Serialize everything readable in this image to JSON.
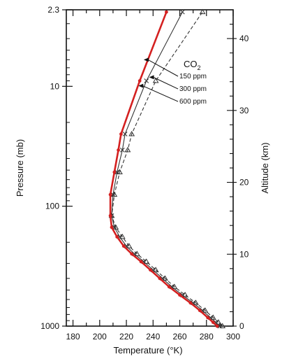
{
  "chart_data": {
    "type": "line",
    "xlabel": "Temperature (°K)",
    "ylabel_left": "Pressure (mb)",
    "ylabel_right": "Altitude (km)",
    "xlim": [
      175,
      300
    ],
    "pressure_range_mb": [
      2.3,
      1000
    ],
    "pressure_scale": "log",
    "altitude_range_km": [
      0,
      44
    ],
    "x_ticks": [
      180,
      200,
      220,
      240,
      260,
      280,
      300
    ],
    "x_tick_labels": [
      "180",
      "200",
      "220",
      "240",
      "260",
      "280",
      "300"
    ],
    "left_ticks": [
      2.3,
      10,
      100,
      1000
    ],
    "left_tick_labels": [
      "2.3",
      "10",
      "100",
      "1000"
    ],
    "right_ticks": [
      0,
      10,
      20,
      30,
      40
    ],
    "right_tick_labels": [
      "0",
      "10",
      "20",
      "30",
      "40"
    ],
    "legend_title": "CO2",
    "series": [
      {
        "name": "150 ppm",
        "color": "#333333",
        "style": "dashed",
        "marker": "triangle",
        "points": [
          {
            "t": 292,
            "p": 1000
          },
          {
            "t": 289,
            "p": 930
          },
          {
            "t": 285,
            "p": 850
          },
          {
            "t": 279,
            "p": 740
          },
          {
            "t": 272,
            "p": 640
          },
          {
            "t": 264,
            "p": 550
          },
          {
            "t": 256,
            "p": 470
          },
          {
            "t": 249,
            "p": 400
          },
          {
            "t": 242,
            "p": 340
          },
          {
            "t": 235,
            "p": 290
          },
          {
            "t": 228,
            "p": 250
          },
          {
            "t": 222,
            "p": 215
          },
          {
            "t": 217,
            "p": 180
          },
          {
            "t": 212,
            "p": 150
          },
          {
            "t": 209,
            "p": 120
          },
          {
            "t": 211,
            "p": 80
          },
          {
            "t": 215,
            "p": 52
          },
          {
            "t": 221,
            "p": 34
          },
          {
            "t": 224,
            "p": 25
          },
          {
            "t": 242,
            "p": 9
          },
          {
            "t": 277,
            "p": 2.4
          }
        ]
      },
      {
        "name": "300 ppm",
        "color": "#333333",
        "style": "solid",
        "marker": "x",
        "points": [
          {
            "t": 290,
            "p": 1000
          },
          {
            "t": 287,
            "p": 930
          },
          {
            "t": 283,
            "p": 850
          },
          {
            "t": 277,
            "p": 740
          },
          {
            "t": 270,
            "p": 640
          },
          {
            "t": 262,
            "p": 550
          },
          {
            "t": 254,
            "p": 470
          },
          {
            "t": 247,
            "p": 400
          },
          {
            "t": 240,
            "p": 340
          },
          {
            "t": 233,
            "p": 290
          },
          {
            "t": 226,
            "p": 250
          },
          {
            "t": 220,
            "p": 215
          },
          {
            "t": 215,
            "p": 180
          },
          {
            "t": 211,
            "p": 150
          },
          {
            "t": 209,
            "p": 120
          },
          {
            "t": 210,
            "p": 80
          },
          {
            "t": 213,
            "p": 52
          },
          {
            "t": 217,
            "p": 34
          },
          {
            "t": 219,
            "p": 25
          },
          {
            "t": 235,
            "p": 9
          },
          {
            "t": 262,
            "p": 2.4
          }
        ]
      },
      {
        "name": "600 ppm",
        "color": "#d42020",
        "style": "solid",
        "marker": "dot",
        "points": [
          {
            "t": 288,
            "p": 1000
          },
          {
            "t": 285,
            "p": 930
          },
          {
            "t": 281,
            "p": 850
          },
          {
            "t": 275,
            "p": 740
          },
          {
            "t": 268,
            "p": 640
          },
          {
            "t": 260,
            "p": 550
          },
          {
            "t": 252,
            "p": 470
          },
          {
            "t": 245,
            "p": 400
          },
          {
            "t": 238,
            "p": 340
          },
          {
            "t": 231,
            "p": 290
          },
          {
            "t": 224,
            "p": 250
          },
          {
            "t": 218,
            "p": 215
          },
          {
            "t": 213,
            "p": 180
          },
          {
            "t": 209,
            "p": 150
          },
          {
            "t": 208,
            "p": 120
          },
          {
            "t": 208,
            "p": 80
          },
          {
            "t": 211,
            "p": 52
          },
          {
            "t": 214,
            "p": 34
          },
          {
            "t": 216,
            "p": 25
          },
          {
            "t": 230,
            "p": 9
          },
          {
            "t": 250,
            "p": 2.4
          }
        ]
      }
    ],
    "annotations": [
      {
        "label": "150 ppm",
        "series": "150 ppm"
      },
      {
        "label": "300 ppm",
        "series": "300 ppm"
      },
      {
        "label": "600 ppm",
        "series": "600 ppm"
      }
    ]
  }
}
